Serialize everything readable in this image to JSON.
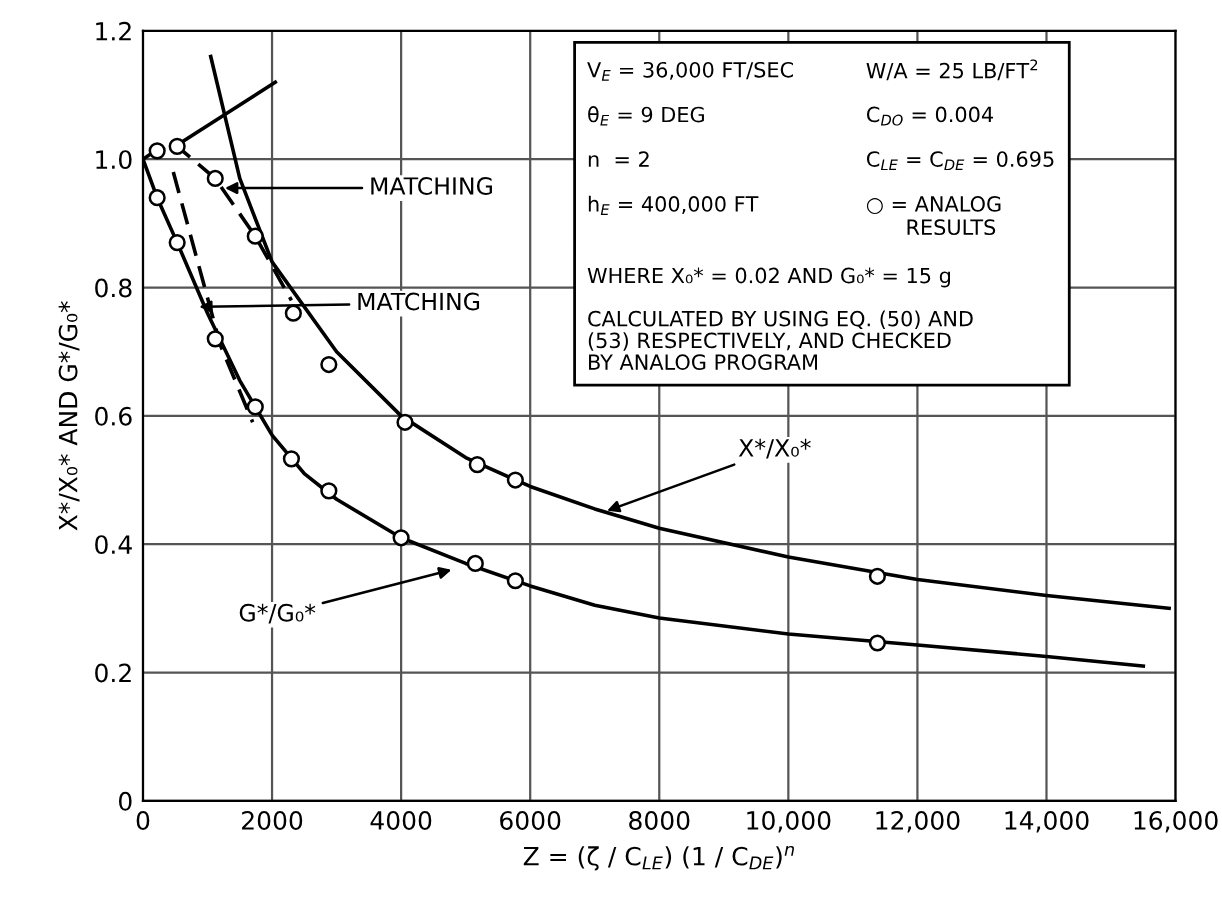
{
  "chart_data": {
    "type": "line",
    "xlabel": "Z = (ζ / C$_{LE}$) (1 / C$_{DE}$)$^{n}$",
    "ylabel": "X*/X₀* AND G*/G₀*",
    "xlim": [
      0,
      16000
    ],
    "ylim": [
      0,
      1.2
    ],
    "xticks": [
      0,
      2000,
      4000,
      6000,
      8000,
      {
        "value": 10000,
        "label": "10,000"
      },
      {
        "value": 12000,
        "label": "12,000"
      },
      {
        "value": 14000,
        "label": "14,000"
      },
      {
        "value": 16000,
        "label": "16,000"
      }
    ],
    "yticks": [
      0,
      0.2,
      0.4,
      0.6,
      0.8,
      {
        "value": 1.0,
        "label": "1.0"
      },
      1.2
    ],
    "grid": true,
    "legend": false,
    "series": [
      {
        "color": "#000000",
        "line_style": "solid",
        "marker": "none",
        "x": [
          1050,
          1500,
          2000,
          3000,
          4000,
          5000,
          6000,
          7000,
          8000,
          10000,
          12000,
          14000,
          15900
        ],
        "values": [
          1.16,
          0.97,
          0.84,
          0.7,
          0.6,
          0.535,
          0.49,
          0.455,
          0.425,
          0.38,
          0.345,
          0.32,
          0.3
        ]
      },
      {
        "color": "#000000",
        "line_style": "solid",
        "marker": "none",
        "x": [
          0,
          220,
          530,
          1000,
          1500,
          2000,
          2500,
          3000,
          4000,
          5000,
          6000,
          7000,
          8000,
          10000,
          12000,
          14000,
          15500
        ],
        "values": [
          1.0,
          0.94,
          0.87,
          0.76,
          0.655,
          0.57,
          0.51,
          0.47,
          0.41,
          0.37,
          0.335,
          0.305,
          0.285,
          0.26,
          0.243,
          0.225,
          0.21
        ]
      },
      {
        "color": "#000000",
        "line_style": "dashed",
        "marker": "none",
        "x": [
          0,
          220,
          530,
          1120,
          1740,
          2300
        ],
        "values": [
          1.0,
          1.015,
          1.02,
          0.97,
          0.88,
          0.78
        ]
      },
      {
        "color": "#000000",
        "line_style": "solid",
        "marker": "none",
        "x": [
          500,
          2050
        ],
        "values": [
          1.02,
          1.12
        ]
      },
      {
        "color": "#000000",
        "line_style": "dashed",
        "marker": "none",
        "x": [
          470,
          1200,
          1700
        ],
        "values": [
          0.98,
          0.71,
          0.59
        ]
      },
      {
        "type": "scatter",
        "color": "#000000",
        "marker": "circle",
        "x": [
          220,
          530,
          1120,
          1740,
          2330,
          2880,
          4060,
          5180,
          5770,
          11380
        ],
        "values": [
          1.013,
          1.02,
          0.97,
          0.88,
          0.76,
          0.68,
          0.59,
          0.524,
          0.5,
          0.35
        ]
      },
      {
        "type": "scatter",
        "color": "#000000",
        "marker": "circle",
        "x": [
          220,
          530,
          1120,
          1740,
          2300,
          2880,
          4000,
          5150,
          5770,
          11380
        ],
        "values": [
          0.94,
          0.87,
          0.72,
          0.614,
          0.533,
          0.483,
          0.41,
          0.37,
          0.343,
          0.246
        ]
      }
    ],
    "annotations": [
      "V$_{E}$ = 36,000 FT/SEC",
      "W/A = 25 LB/FT$^{2}$",
      "θ$_{E}$ = 9 DEG",
      "C$_{DO}$ = 0.004",
      "n  = 2",
      "C$_{LE}$ = C$_{DE}$ = 0.695",
      "h$_{E}$ = 400,000 FT",
      "○ = ANALOG\n      RESULTS",
      "WHERE X₀* = 0.02 AND G₀* = 15 g",
      "CALCULATED BY USING EQ. (50) AND\n(53) RESPECTIVELY, AND CHECKED\nBY ANALOG PROGRAM",
      {
        "text": "MATCHING",
        "x": 1270,
        "y": 0.955
      },
      {
        "text": "MATCHING",
        "x": 870,
        "y": 0.77
      },
      {
        "text": "X*/X₀*",
        "x": 7190,
        "y": 0.452
      },
      {
        "text": "G*/G₀*",
        "x": 4780,
        "y": 0.36
      }
    ]
  }
}
